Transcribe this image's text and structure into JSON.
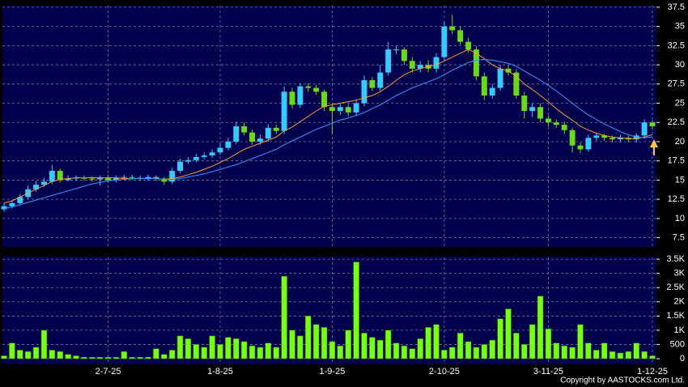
{
  "chart_data": [
    {
      "type": "candlestick",
      "categories": [
        null,
        null,
        null,
        null,
        null,
        null,
        null,
        null,
        null,
        null,
        null,
        null,
        null,
        "2-7-25",
        null,
        null,
        null,
        null,
        null,
        null,
        null,
        null,
        null,
        null,
        null,
        null,
        null,
        "1-8-25",
        null,
        null,
        null,
        null,
        null,
        null,
        null,
        null,
        null,
        null,
        null,
        null,
        null,
        "1-9-25",
        null,
        null,
        null,
        null,
        null,
        null,
        null,
        null,
        null,
        null,
        null,
        null,
        null,
        "2-10-25",
        null,
        null,
        null,
        null,
        null,
        null,
        null,
        null,
        null,
        null,
        null,
        null,
        "3-11-25",
        null,
        null,
        null,
        null,
        null,
        null,
        null,
        null,
        null,
        null,
        null,
        null,
        "1-12-25"
      ],
      "open": [
        11.2,
        11.6,
        12.0,
        12.8,
        13.8,
        14.4,
        14.8,
        16.2,
        15.0,
        15.2,
        15.3,
        15.2,
        15.1,
        15.3,
        15.0,
        15.3,
        15.4,
        15.3,
        15.2,
        15.4,
        15.2,
        14.8,
        16.2,
        17.4,
        17.6,
        18.0,
        18.2,
        18.6,
        19.2,
        20.0,
        22.0,
        21.2,
        20.0,
        20.4,
        21.8,
        21.4,
        26.5,
        24.8,
        27.2,
        27.0,
        26.5,
        24.5,
        24.0,
        24.5,
        23.8,
        25.0,
        28.0,
        27.0,
        29.0,
        32.0,
        32.0,
        30.5,
        29.5,
        30.0,
        29.5,
        31.0,
        35.0,
        34.5,
        33.0,
        32.0,
        28.5,
        26.0,
        27.0,
        29.5,
        29.0,
        26.0,
        24.0,
        24.5,
        23.0,
        22.5,
        22.2,
        21.5,
        19.5,
        19.0,
        20.5,
        20.8,
        20.5,
        20.3,
        20.5,
        20.3,
        20.8,
        22.5
      ],
      "high": [
        12.0,
        12.4,
        13.2,
        14.3,
        14.9,
        15.3,
        17.0,
        16.5,
        15.6,
        15.6,
        15.6,
        15.5,
        15.6,
        15.7,
        15.6,
        15.7,
        15.7,
        15.6,
        15.7,
        15.6,
        15.4,
        16.6,
        17.8,
        18.0,
        18.4,
        18.6,
        19.0,
        19.8,
        20.5,
        22.6,
        22.5,
        21.6,
        20.9,
        22.3,
        22.2,
        27.2,
        27.0,
        27.6,
        27.6,
        27.4,
        26.8,
        25.0,
        25.0,
        24.9,
        25.5,
        28.6,
        28.4,
        30.0,
        33.0,
        32.5,
        32.3,
        31.0,
        30.5,
        30.6,
        31.5,
        35.6,
        36.5,
        35.0,
        33.5,
        32.4,
        29.0,
        27.5,
        30.0,
        30.0,
        29.4,
        26.5,
        25.0,
        25.0,
        23.4,
        22.9,
        22.6,
        21.8,
        19.9,
        20.9,
        21.2,
        21.0,
        20.8,
        20.9,
        20.8,
        21.1,
        22.9,
        22.8
      ],
      "low": [
        10.9,
        11.3,
        11.7,
        12.5,
        13.5,
        14.1,
        14.5,
        14.7,
        14.8,
        14.9,
        14.9,
        14.8,
        14.3,
        14.7,
        14.7,
        15.0,
        15.0,
        14.9,
        14.9,
        14.9,
        14.4,
        14.5,
        15.9,
        17.1,
        17.3,
        17.7,
        17.9,
        18.3,
        18.9,
        19.7,
        20.8,
        19.6,
        19.6,
        20.0,
        21.0,
        21.0,
        24.3,
        24.4,
        26.5,
        26.1,
        24.0,
        21.0,
        23.5,
        23.3,
        23.4,
        24.6,
        26.6,
        26.6,
        28.6,
        31.4,
        30.0,
        29.0,
        29.0,
        29.0,
        29.0,
        30.6,
        34.0,
        32.6,
        31.6,
        28.0,
        25.4,
        25.6,
        26.6,
        28.6,
        25.6,
        23.0,
        23.2,
        22.5,
        22.0,
        21.8,
        21.0,
        18.6,
        18.5,
        18.7,
        20.1,
        20.1,
        19.9,
        19.9,
        19.9,
        19.9,
        20.4,
        21.6
      ],
      "close": [
        11.6,
        12.0,
        12.8,
        13.8,
        14.4,
        14.8,
        16.2,
        15.0,
        15.2,
        15.3,
        15.2,
        15.1,
        15.3,
        15.0,
        15.3,
        15.4,
        15.3,
        15.2,
        15.4,
        15.2,
        14.8,
        16.2,
        17.4,
        17.6,
        18.0,
        18.2,
        18.6,
        19.2,
        20.0,
        22.0,
        21.2,
        20.0,
        20.4,
        21.8,
        21.4,
        26.5,
        24.8,
        27.2,
        27.0,
        26.5,
        24.5,
        24.0,
        24.5,
        23.8,
        25.0,
        28.0,
        27.0,
        29.0,
        32.0,
        32.0,
        30.5,
        29.5,
        30.0,
        29.5,
        31.0,
        35.0,
        34.5,
        33.0,
        32.0,
        28.5,
        26.0,
        27.0,
        29.5,
        29.0,
        26.0,
        24.0,
        24.5,
        23.0,
        22.5,
        22.2,
        21.5,
        19.5,
        19.0,
        20.5,
        20.8,
        20.5,
        20.3,
        20.5,
        20.3,
        20.8,
        22.5,
        22.0
      ],
      "up_color": "#33ccff",
      "down_color": "#66dd11",
      "series": [
        {
          "color": "#ff9933",
          "values": [
            12.0,
            12.3,
            12.8,
            13.3,
            13.8,
            14.3,
            14.8,
            15.1,
            15.2,
            15.3,
            15.3,
            15.3,
            15.3,
            15.3,
            15.3,
            15.2,
            15.2,
            15.2,
            15.2,
            15.2,
            15.1,
            15.2,
            15.4,
            15.7,
            16.0,
            16.4,
            16.8,
            17.3,
            17.8,
            18.4,
            19.0,
            19.4,
            19.8,
            20.2,
            20.6,
            21.4,
            21.9,
            22.6,
            23.3,
            24.0,
            24.6,
            24.8,
            25.0,
            25.2,
            25.4,
            25.7,
            26.0,
            26.5,
            27.2,
            28.0,
            28.7,
            29.2,
            29.5,
            29.8,
            30.0,
            30.5,
            31.0,
            31.5,
            32.0,
            31.5,
            30.8,
            30.0,
            29.5,
            29.2,
            28.5,
            27.5,
            26.8,
            26.0,
            25.2,
            24.3,
            23.5,
            22.8,
            22.0,
            21.5,
            21.1,
            20.8,
            20.6,
            20.5,
            20.4,
            20.4,
            20.6,
            20.9
          ]
        },
        {
          "color": "#3399ff",
          "values": [
            11.3,
            11.5,
            11.8,
            12.1,
            12.4,
            12.7,
            13.0,
            13.3,
            13.6,
            13.9,
            14.2,
            14.5,
            14.7,
            14.9,
            15.0,
            15.1,
            15.2,
            15.2,
            15.2,
            15.2,
            15.1,
            15.1,
            15.2,
            15.4,
            15.6,
            15.8,
            16.1,
            16.4,
            16.7,
            17.0,
            17.4,
            17.8,
            18.2,
            18.6,
            19.0,
            19.6,
            20.1,
            20.6,
            21.1,
            21.6,
            22.0,
            22.4,
            22.8,
            23.1,
            23.4,
            23.8,
            24.3,
            24.8,
            25.4,
            26.0,
            26.5,
            27.0,
            27.4,
            27.8,
            28.2,
            28.7,
            29.3,
            29.8,
            30.3,
            30.6,
            30.7,
            30.6,
            30.4,
            30.2,
            29.8,
            29.2,
            28.6,
            28.0,
            27.3,
            26.6,
            25.8,
            25.0,
            24.2,
            23.5,
            22.9,
            22.3,
            21.8,
            21.3,
            20.9,
            20.6,
            20.5,
            20.6
          ]
        }
      ],
      "ylim": [
        6.3,
        37.7
      ],
      "yticks": [
        7.5,
        10,
        12.5,
        15,
        17.5,
        20,
        22.5,
        25,
        27.5,
        30,
        32.5,
        35,
        37.5
      ],
      "grid": true
    },
    {
      "type": "bar",
      "values": [
        100,
        550,
        300,
        250,
        400,
        1000,
        300,
        250,
        150,
        100,
        50,
        50,
        50,
        50,
        50,
        250,
        50,
        50,
        50,
        350,
        150,
        300,
        800,
        700,
        500,
        400,
        800,
        500,
        750,
        700,
        600,
        450,
        400,
        550,
        400,
        2900,
        1000,
        800,
        1500,
        1200,
        1100,
        600,
        450,
        1000,
        3400,
        900,
        750,
        650,
        1000,
        550,
        450,
        350,
        700,
        1100,
        1200,
        300,
        400,
        900,
        600,
        400,
        500,
        650,
        1400,
        1750,
        900,
        500,
        1200,
        2200,
        1050,
        550,
        450,
        400,
        1200,
        550,
        300,
        550,
        250,
        200,
        250,
        550,
        250,
        100
      ],
      "color": "#77ff11",
      "ylim": [
        0,
        3560
      ],
      "yticks": [
        0,
        500,
        {
          "value": 1000,
          "label": "1K"
        },
        {
          "value": 1500,
          "label": "1.5K"
        },
        {
          "value": 2000,
          "label": "2K"
        },
        {
          "value": 2500,
          "label": "2.5K"
        },
        {
          "value": 3000,
          "label": "3K"
        },
        {
          "value": 3500,
          "label": "3.5K"
        }
      ],
      "grid": true
    }
  ],
  "footer": "Copyright by AASTOCKS.com Ltd."
}
